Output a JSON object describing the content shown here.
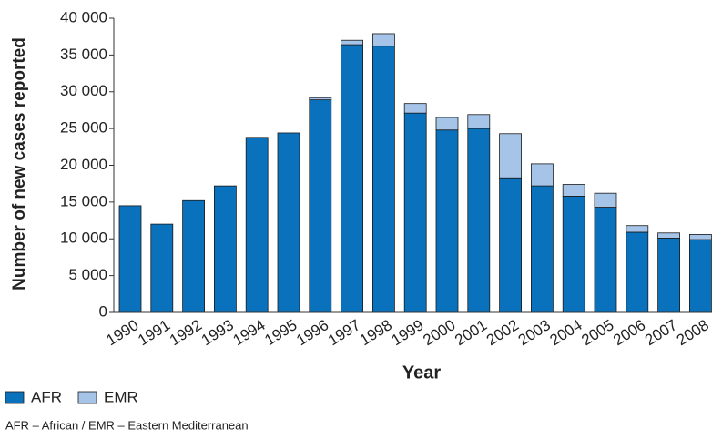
{
  "chart_data": {
    "type": "bar",
    "stacked": true,
    "y_label": "Number of new cases reported",
    "x_label": "Year",
    "categories": [
      "1990",
      "1991",
      "1992",
      "1993",
      "1994",
      "1995",
      "1996",
      "1997",
      "1998",
      "1999",
      "2000",
      "2001",
      "2002",
      "2003",
      "2004",
      "2005",
      "2006",
      "2007",
      "2008"
    ],
    "series": [
      {
        "name": "AFR",
        "color": "#0a72bd",
        "values": [
          14500,
          12000,
          15200,
          17200,
          23800,
          24400,
          28900,
          36400,
          36200,
          27100,
          24800,
          25000,
          18300,
          17200,
          15800,
          14300,
          10900,
          10100,
          9900
        ]
      },
      {
        "name": "EMR",
        "color": "#a6c4e8",
        "values": [
          0,
          0,
          0,
          0,
          0,
          0,
          300,
          600,
          1700,
          1300,
          1700,
          1900,
          6000,
          3000,
          1600,
          1900,
          900,
          700,
          700
        ]
      }
    ],
    "ylim": [
      0,
      40000
    ],
    "yticks": [
      0,
      {
        "value": 5000,
        "label": "5 000"
      },
      {
        "value": 10000,
        "label": "10 000"
      },
      {
        "value": 15000,
        "label": "15 000"
      },
      {
        "value": 20000,
        "label": "20 000"
      },
      {
        "value": 25000,
        "label": "25 000"
      },
      {
        "value": 30000,
        "label": "30 000"
      },
      {
        "value": 35000,
        "label": "35 000"
      },
      {
        "value": 40000,
        "label": "40 000"
      }
    ],
    "grid": false,
    "note": "AFR – African / EMR – Eastern Mediterranean"
  }
}
